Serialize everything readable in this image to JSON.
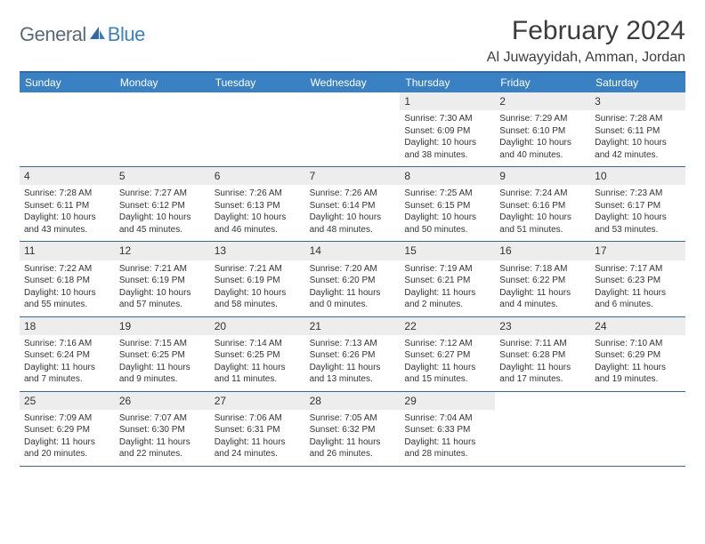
{
  "logo": {
    "general": "General",
    "blue": "Blue"
  },
  "title": "February 2024",
  "location": "Al Juwayyidah, Amman, Jordan",
  "weekdays": [
    "Sunday",
    "Monday",
    "Tuesday",
    "Wednesday",
    "Thursday",
    "Friday",
    "Saturday"
  ],
  "style": {
    "header_bg": "#3a81c3",
    "header_text": "#ffffff",
    "border_color": "#2f6aa8",
    "daynum_bg": "#ededed",
    "page_bg": "#ffffff",
    "text_color": "#333333",
    "title_fontsize": 30,
    "location_fontsize": 16,
    "weekday_fontsize": 12,
    "cell_fontsize": 10
  },
  "weeks": [
    [
      {
        "n": "",
        "empty": true
      },
      {
        "n": "",
        "empty": true
      },
      {
        "n": "",
        "empty": true
      },
      {
        "n": "",
        "empty": true
      },
      {
        "n": "1",
        "sunrise": "Sunrise: 7:30 AM",
        "sunset": "Sunset: 6:09 PM",
        "daylight1": "Daylight: 10 hours",
        "daylight2": "and 38 minutes."
      },
      {
        "n": "2",
        "sunrise": "Sunrise: 7:29 AM",
        "sunset": "Sunset: 6:10 PM",
        "daylight1": "Daylight: 10 hours",
        "daylight2": "and 40 minutes."
      },
      {
        "n": "3",
        "sunrise": "Sunrise: 7:28 AM",
        "sunset": "Sunset: 6:11 PM",
        "daylight1": "Daylight: 10 hours",
        "daylight2": "and 42 minutes."
      }
    ],
    [
      {
        "n": "4",
        "sunrise": "Sunrise: 7:28 AM",
        "sunset": "Sunset: 6:11 PM",
        "daylight1": "Daylight: 10 hours",
        "daylight2": "and 43 minutes."
      },
      {
        "n": "5",
        "sunrise": "Sunrise: 7:27 AM",
        "sunset": "Sunset: 6:12 PM",
        "daylight1": "Daylight: 10 hours",
        "daylight2": "and 45 minutes."
      },
      {
        "n": "6",
        "sunrise": "Sunrise: 7:26 AM",
        "sunset": "Sunset: 6:13 PM",
        "daylight1": "Daylight: 10 hours",
        "daylight2": "and 46 minutes."
      },
      {
        "n": "7",
        "sunrise": "Sunrise: 7:26 AM",
        "sunset": "Sunset: 6:14 PM",
        "daylight1": "Daylight: 10 hours",
        "daylight2": "and 48 minutes."
      },
      {
        "n": "8",
        "sunrise": "Sunrise: 7:25 AM",
        "sunset": "Sunset: 6:15 PM",
        "daylight1": "Daylight: 10 hours",
        "daylight2": "and 50 minutes."
      },
      {
        "n": "9",
        "sunrise": "Sunrise: 7:24 AM",
        "sunset": "Sunset: 6:16 PM",
        "daylight1": "Daylight: 10 hours",
        "daylight2": "and 51 minutes."
      },
      {
        "n": "10",
        "sunrise": "Sunrise: 7:23 AM",
        "sunset": "Sunset: 6:17 PM",
        "daylight1": "Daylight: 10 hours",
        "daylight2": "and 53 minutes."
      }
    ],
    [
      {
        "n": "11",
        "sunrise": "Sunrise: 7:22 AM",
        "sunset": "Sunset: 6:18 PM",
        "daylight1": "Daylight: 10 hours",
        "daylight2": "and 55 minutes."
      },
      {
        "n": "12",
        "sunrise": "Sunrise: 7:21 AM",
        "sunset": "Sunset: 6:19 PM",
        "daylight1": "Daylight: 10 hours",
        "daylight2": "and 57 minutes."
      },
      {
        "n": "13",
        "sunrise": "Sunrise: 7:21 AM",
        "sunset": "Sunset: 6:19 PM",
        "daylight1": "Daylight: 10 hours",
        "daylight2": "and 58 minutes."
      },
      {
        "n": "14",
        "sunrise": "Sunrise: 7:20 AM",
        "sunset": "Sunset: 6:20 PM",
        "daylight1": "Daylight: 11 hours",
        "daylight2": "and 0 minutes."
      },
      {
        "n": "15",
        "sunrise": "Sunrise: 7:19 AM",
        "sunset": "Sunset: 6:21 PM",
        "daylight1": "Daylight: 11 hours",
        "daylight2": "and 2 minutes."
      },
      {
        "n": "16",
        "sunrise": "Sunrise: 7:18 AM",
        "sunset": "Sunset: 6:22 PM",
        "daylight1": "Daylight: 11 hours",
        "daylight2": "and 4 minutes."
      },
      {
        "n": "17",
        "sunrise": "Sunrise: 7:17 AM",
        "sunset": "Sunset: 6:23 PM",
        "daylight1": "Daylight: 11 hours",
        "daylight2": "and 6 minutes."
      }
    ],
    [
      {
        "n": "18",
        "sunrise": "Sunrise: 7:16 AM",
        "sunset": "Sunset: 6:24 PM",
        "daylight1": "Daylight: 11 hours",
        "daylight2": "and 7 minutes."
      },
      {
        "n": "19",
        "sunrise": "Sunrise: 7:15 AM",
        "sunset": "Sunset: 6:25 PM",
        "daylight1": "Daylight: 11 hours",
        "daylight2": "and 9 minutes."
      },
      {
        "n": "20",
        "sunrise": "Sunrise: 7:14 AM",
        "sunset": "Sunset: 6:25 PM",
        "daylight1": "Daylight: 11 hours",
        "daylight2": "and 11 minutes."
      },
      {
        "n": "21",
        "sunrise": "Sunrise: 7:13 AM",
        "sunset": "Sunset: 6:26 PM",
        "daylight1": "Daylight: 11 hours",
        "daylight2": "and 13 minutes."
      },
      {
        "n": "22",
        "sunrise": "Sunrise: 7:12 AM",
        "sunset": "Sunset: 6:27 PM",
        "daylight1": "Daylight: 11 hours",
        "daylight2": "and 15 minutes."
      },
      {
        "n": "23",
        "sunrise": "Sunrise: 7:11 AM",
        "sunset": "Sunset: 6:28 PM",
        "daylight1": "Daylight: 11 hours",
        "daylight2": "and 17 minutes."
      },
      {
        "n": "24",
        "sunrise": "Sunrise: 7:10 AM",
        "sunset": "Sunset: 6:29 PM",
        "daylight1": "Daylight: 11 hours",
        "daylight2": "and 19 minutes."
      }
    ],
    [
      {
        "n": "25",
        "sunrise": "Sunrise: 7:09 AM",
        "sunset": "Sunset: 6:29 PM",
        "daylight1": "Daylight: 11 hours",
        "daylight2": "and 20 minutes."
      },
      {
        "n": "26",
        "sunrise": "Sunrise: 7:07 AM",
        "sunset": "Sunset: 6:30 PM",
        "daylight1": "Daylight: 11 hours",
        "daylight2": "and 22 minutes."
      },
      {
        "n": "27",
        "sunrise": "Sunrise: 7:06 AM",
        "sunset": "Sunset: 6:31 PM",
        "daylight1": "Daylight: 11 hours",
        "daylight2": "and 24 minutes."
      },
      {
        "n": "28",
        "sunrise": "Sunrise: 7:05 AM",
        "sunset": "Sunset: 6:32 PM",
        "daylight1": "Daylight: 11 hours",
        "daylight2": "and 26 minutes."
      },
      {
        "n": "29",
        "sunrise": "Sunrise: 7:04 AM",
        "sunset": "Sunset: 6:33 PM",
        "daylight1": "Daylight: 11 hours",
        "daylight2": "and 28 minutes."
      },
      {
        "n": "",
        "empty": true
      },
      {
        "n": "",
        "empty": true
      }
    ]
  ]
}
